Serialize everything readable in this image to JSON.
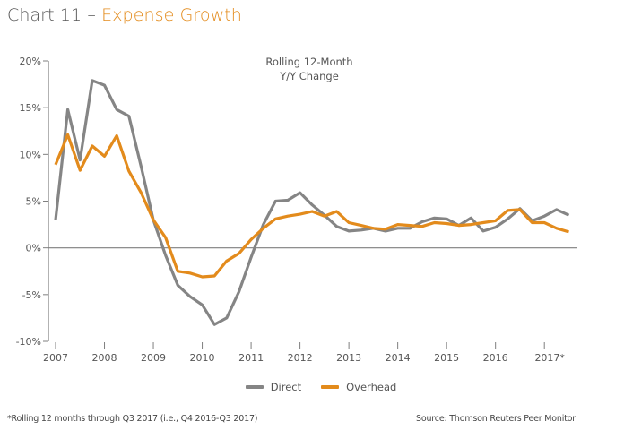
{
  "header": {
    "title_lead": "Chart 11 – ",
    "title_accent": "Expense Growth"
  },
  "colors": {
    "direct": "#858585",
    "overhead": "#e38b1c",
    "axis": "#7f7f7f",
    "title_accent": "#e38b1c"
  },
  "chart_data": {
    "type": "line",
    "title": "Chart 11 – Expense Growth",
    "annotation": [
      "Rolling 12-Month",
      "Y/Y Change"
    ],
    "xlabel": "",
    "ylabel": "",
    "ylim": [
      -10,
      20
    ],
    "yticks": [
      20,
      15,
      10,
      5,
      0,
      -5,
      -10
    ],
    "ytick_labels": [
      "20%",
      "15%",
      "10%",
      "5%",
      "0%",
      "-5%",
      "-10%"
    ],
    "xlim": [
      0,
      42
    ],
    "x_unit": "quarter index from Q1 2007",
    "xticks": [
      0,
      4,
      8,
      12,
      16,
      20,
      24,
      28,
      32,
      36,
      40
    ],
    "xtick_labels": [
      "2007",
      "2008",
      "2009",
      "2010",
      "2011",
      "2012",
      "2013",
      "2014",
      "2015",
      "2016",
      "2017*"
    ],
    "grid": false,
    "legend_position": "bottom",
    "series": [
      {
        "name": "Direct",
        "color": "#858585",
        "values": [
          3.0,
          14.8,
          9.4,
          17.9,
          17.4,
          14.8,
          14.1,
          8.7,
          3.0,
          -0.8,
          -4.0,
          -5.2,
          -6.1,
          -8.2,
          -7.5,
          -4.7,
          -1.0,
          2.5,
          5.0,
          5.1,
          5.9,
          4.6,
          3.5,
          2.3,
          1.8,
          1.9,
          2.1,
          1.8,
          2.1,
          2.1,
          2.8,
          3.2,
          3.1,
          2.4,
          3.2,
          1.8,
          2.2,
          3.1,
          4.2,
          2.9,
          3.4,
          4.1,
          3.5
        ]
      },
      {
        "name": "Overhead",
        "color": "#e38b1c",
        "values": [
          8.9,
          12.1,
          8.3,
          10.9,
          9.8,
          12.0,
          8.2,
          5.9,
          3.0,
          1.1,
          -2.5,
          -2.7,
          -3.1,
          -3.0,
          -1.4,
          -0.6,
          0.9,
          2.1,
          3.1,
          3.4,
          3.6,
          3.9,
          3.4,
          3.9,
          2.7,
          2.4,
          2.1,
          2.0,
          2.5,
          2.4,
          2.3,
          2.7,
          2.6,
          2.4,
          2.5,
          2.7,
          2.9,
          4.0,
          4.1,
          2.7,
          2.7,
          2.1,
          1.7
        ]
      }
    ]
  },
  "legend": {
    "items": [
      {
        "label": "Direct",
        "color": "#858585"
      },
      {
        "label": "Overhead",
        "color": "#e38b1c"
      }
    ]
  },
  "footer": {
    "footnote": "*Rolling 12 months through Q3 2017 (i.e., Q4 2016-Q3 2017)",
    "source": "Source: Thomson Reuters Peer Monitor"
  }
}
